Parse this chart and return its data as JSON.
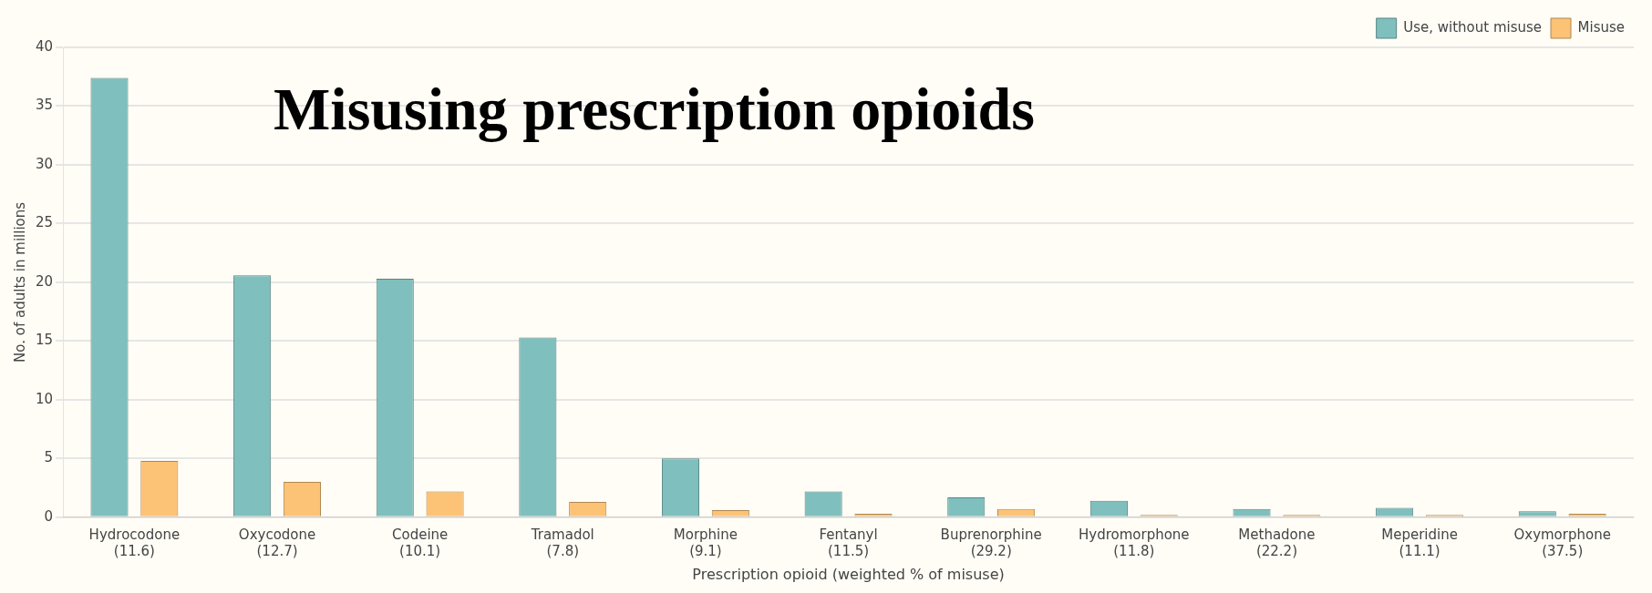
{
  "chart_data": {
    "type": "bar",
    "title": "Misusing prescription opioids",
    "xlabel": "Prescription opioid (weighted % of misuse)",
    "ylabel": "No. of adults in millions",
    "categories": [
      "Hydrocodone\n(11.6)",
      "Oxycodone\n(12.7)",
      "Codeine\n(10.1)",
      "Tramadol\n(7.8)",
      "Morphine\n(9.1)",
      "Fentanyl\n(11.5)",
      "Buprenorphine\n(29.2)",
      "Hydromorphone\n(11.8)",
      "Methadone\n(22.2)",
      "Meperidine\n(11.1)",
      "Oxymorphone\n(37.5)"
    ],
    "series": [
      {
        "name": "Use, without misuse",
        "color": "#7fbfbd",
        "values": [
          37.4,
          20.6,
          20.3,
          15.3,
          5.0,
          2.2,
          1.7,
          1.4,
          0.7,
          0.8,
          0.5
        ]
      },
      {
        "name": "Misuse",
        "color": "#fcc275",
        "values": [
          4.8,
          3.0,
          2.2,
          1.3,
          0.6,
          0.3,
          0.7,
          0.2,
          0.2,
          0.2,
          0.3
        ]
      }
    ],
    "ylim": [
      0,
      40
    ],
    "yticks": [
      0,
      5,
      10,
      15,
      20,
      25,
      30,
      35,
      40
    ],
    "grid": "y",
    "legend": "top right"
  }
}
